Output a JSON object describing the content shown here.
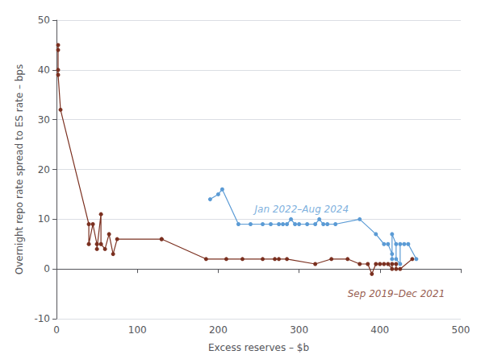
{
  "chart_data": {
    "type": "line",
    "xlabel": "Excess reserves – $b",
    "ylabel": "Overnight repo rate spread to ES rate – bps",
    "xlim": [
      0,
      500
    ],
    "ylim": [
      -10,
      50
    ],
    "xticks": [
      0,
      100,
      200,
      300,
      400,
      500
    ],
    "yticks": [
      -10,
      0,
      10,
      20,
      30,
      40,
      50
    ],
    "grid": true,
    "marker": "circle",
    "series": [
      {
        "color": "#7B3020",
        "x": [
          2,
          2,
          2,
          2,
          5,
          40,
          40,
          45,
          50,
          50,
          55,
          55,
          60,
          65,
          70,
          75,
          130,
          130,
          185,
          210,
          230,
          255,
          270,
          275,
          285,
          320,
          340,
          360,
          375,
          385,
          390,
          395,
          400,
          405,
          410,
          415,
          415,
          420,
          420,
          425,
          440
        ],
        "values": [
          45,
          44,
          40,
          39,
          32,
          9,
          5,
          9,
          5,
          4,
          11,
          5,
          4,
          7,
          3,
          6,
          6,
          6,
          2,
          2,
          2,
          2,
          2,
          2,
          2,
          1,
          2,
          2,
          1,
          1,
          -1,
          1,
          1,
          1,
          1,
          0,
          1,
          1,
          0,
          0,
          2
        ]
      },
      {
        "color": "#5B9BD5",
        "x": [
          190,
          200,
          205,
          225,
          240,
          255,
          265,
          275,
          280,
          285,
          290,
          295,
          300,
          310,
          320,
          325,
          330,
          335,
          345,
          375,
          395,
          405,
          410,
          415,
          415,
          415,
          420,
          420,
          425,
          425,
          430,
          435,
          445
        ],
        "values": [
          14,
          15,
          16,
          9,
          9,
          9,
          9,
          9,
          9,
          9,
          10,
          9,
          9,
          9,
          9,
          10,
          9,
          9,
          9,
          10,
          7,
          5,
          5,
          3,
          2,
          7,
          5,
          2,
          1,
          5,
          5,
          5,
          2
        ]
      }
    ],
    "annotations": [
      {
        "text": "Jan 2022–Aug 2024",
        "x": 245,
        "y": 11,
        "color": "#5B9BD5"
      },
      {
        "text": "Sep 2019–Dec 2021",
        "x": 360,
        "y": -4,
        "color": "#7B3020"
      }
    ]
  }
}
